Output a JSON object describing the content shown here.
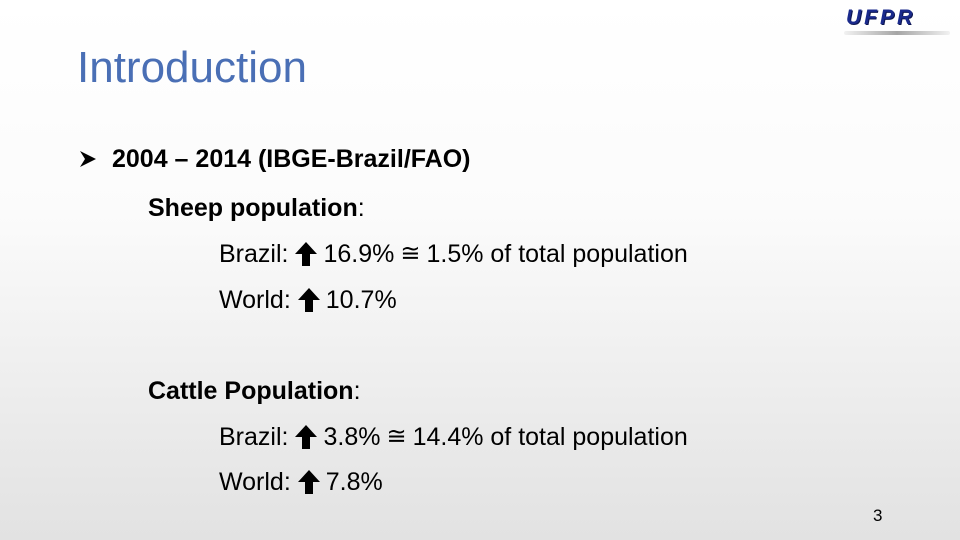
{
  "slide": {
    "logo": "UFPR",
    "title": "Introduction",
    "bullet": "2004 – 2014 (IBGE-Brazil/FAO)",
    "sheep": {
      "heading": "Sheep population",
      "colon": ":",
      "brazil_label": "Brazil:",
      "brazil_increase": "16.9%",
      "approx_symbol": "≅",
      "brazil_share": "1.5% of total population",
      "world_label": "World:",
      "world_increase": "10.7%"
    },
    "cattle": {
      "heading": "Cattle Population",
      "colon": ":",
      "brazil_label": "Brazil:",
      "brazil_increase": "3.8%",
      "approx_symbol": "≅",
      "brazil_share": "14.4% of total population",
      "world_label": "World:",
      "world_increase": "7.8%"
    },
    "page_number": "3"
  }
}
